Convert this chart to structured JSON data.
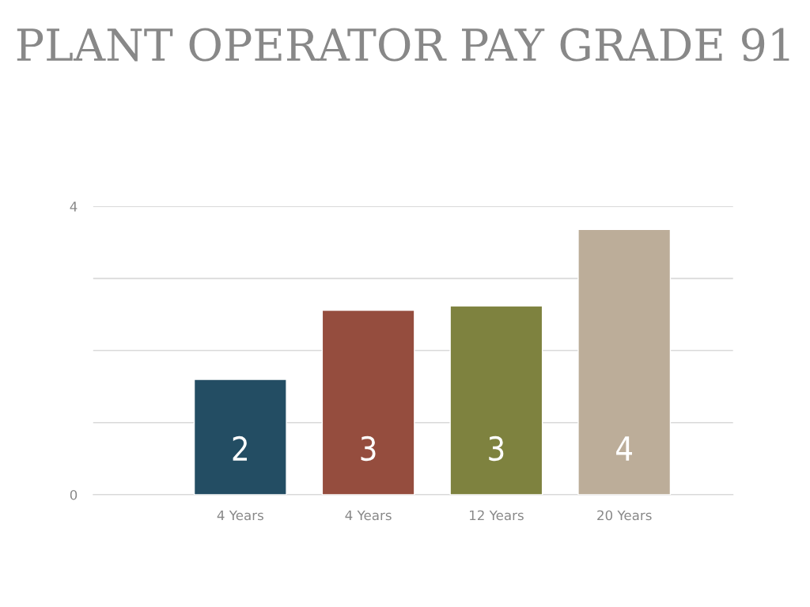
{
  "chart_data": {
    "type": "bar",
    "title": "PLANT OPERATOR PAY GRADE 91",
    "categories": [
      "4 Years",
      "4 Years",
      "12 Years",
      "20 Years"
    ],
    "values": [
      1.6,
      2.56,
      2.62,
      3.68
    ],
    "colors": [
      "#234d63",
      "#954d3e",
      "#7e823f",
      "#bcad99"
    ],
    "value_labels": [
      "2",
      "3",
      "3",
      "4"
    ],
    "ylim": [
      0,
      4
    ],
    "yticks": [
      0,
      {
        "value": 1,
        "label": null
      },
      {
        "value": 2,
        "label": null
      },
      {
        "value": 3,
        "label": null
      },
      4
    ],
    "grid": "y"
  }
}
